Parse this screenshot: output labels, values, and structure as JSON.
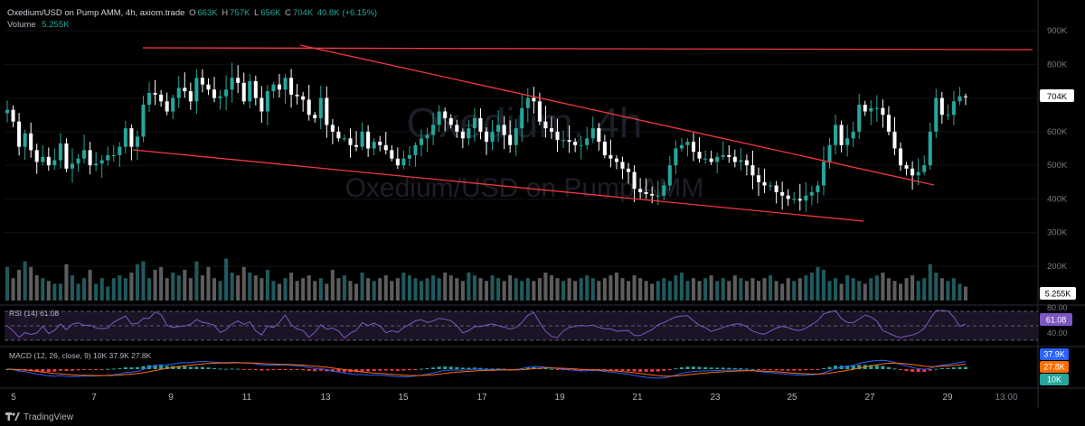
{
  "header": {
    "symbol": "Oxedium/USD on Pump AMM, 4h, axiom.trade",
    "o_label": "O",
    "o_value": "663K",
    "h_label": "H",
    "h_value": "757K",
    "l_label": "L",
    "l_value": "656K",
    "c_label": "C",
    "c_value": "704K",
    "change": "40.8K (+6.15%)",
    "volume_label": "Volume",
    "volume_value": "5.255K"
  },
  "watermark": {
    "big": "Oxedium, 4h",
    "small": "Oxedium/USD on Pump AMM"
  },
  "price_axis": {
    "ticks": [
      "900K",
      "800K",
      "700K",
      "600K",
      "500K",
      "400K",
      "300K",
      "200K"
    ],
    "last_price": "704K",
    "volume_badge": "5.255K"
  },
  "rsi": {
    "label": "RSI (14) 61.08",
    "levels": [
      "80.00",
      "40.00"
    ],
    "value_badge": "61.08"
  },
  "macd": {
    "label": "MACD (12, 26, close, 9) 10K 37.9K 27.8K",
    "badges": [
      "37.9K",
      "27.8K",
      "10K"
    ]
  },
  "time_axis": {
    "ticks": [
      "5",
      "7",
      "9",
      "11",
      "13",
      "15",
      "17",
      "19",
      "21",
      "23",
      "25",
      "27",
      "29",
      "13:00"
    ]
  },
  "footer": {
    "brand": "TradingView"
  },
  "colors": {
    "up": "#26a69a",
    "down": "#ffffff",
    "volume_up": "#1f5a5e",
    "volume_down": "#5d5d5d",
    "trend": "#f23645",
    "rsi": "#7e57c2",
    "macd": "#2962ff",
    "signal": "#ff6d00",
    "background": "#000000"
  },
  "chart_data": {
    "type": "candlestick",
    "title": "Oxedium/USD on Pump AMM, 4h",
    "x_ticks": [
      "5",
      "7",
      "9",
      "11",
      "13",
      "15",
      "17",
      "19",
      "21",
      "23",
      "25",
      "27",
      "29",
      "13:00"
    ],
    "ylim": [
      250,
      920
    ],
    "y_unit": "K",
    "closes": [
      665,
      630,
      555,
      595,
      545,
      510,
      525,
      500,
      515,
      565,
      490,
      505,
      520,
      545,
      500,
      505,
      515,
      530,
      530,
      555,
      610,
      555,
      585,
      680,
      715,
      710,
      690,
      660,
      700,
      730,
      720,
      690,
      760,
      740,
      725,
      700,
      705,
      725,
      760,
      745,
      690,
      750,
      700,
      660,
      720,
      740,
      725,
      760,
      710,
      705,
      695,
      650,
      640,
      700,
      620,
      600,
      580,
      580,
      560,
      555,
      600,
      550,
      570,
      560,
      545,
      520,
      500,
      520,
      530,
      560,
      580,
      590,
      620,
      660,
      640,
      620,
      600,
      580,
      610,
      640,
      600,
      570,
      600,
      620,
      590,
      560,
      610,
      670,
      700,
      690,
      630,
      610,
      600,
      575,
      575,
      570,
      560,
      560,
      580,
      610,
      570,
      530,
      520,
      510,
      490,
      480,
      430,
      420,
      415,
      410,
      410,
      440,
      500,
      550,
      560,
      570,
      540,
      520,
      520,
      510,
      525,
      530,
      525,
      510,
      515,
      500,
      470,
      450,
      440,
      440,
      420,
      410,
      400,
      400,
      395,
      410,
      420,
      440,
      510,
      560,
      620,
      560,
      580,
      600,
      680,
      660,
      670,
      670,
      650,
      600,
      550,
      500,
      490,
      470,
      480,
      500,
      600,
      700,
      650,
      650,
      690,
      705,
      704
    ],
    "volume": [
      60,
      40,
      55,
      70,
      60,
      45,
      40,
      35,
      30,
      30,
      65,
      45,
      30,
      40,
      55,
      30,
      40,
      25,
      40,
      45,
      40,
      50,
      65,
      70,
      40,
      55,
      60,
      40,
      50,
      45,
      55,
      40,
      70,
      45,
      60,
      40,
      35,
      75,
      50,
      45,
      60,
      50,
      45,
      40,
      55,
      35,
      30,
      40,
      50,
      35,
      40,
      45,
      35,
      40,
      30,
      55,
      40,
      45,
      35,
      30,
      50,
      40,
      35,
      40,
      45,
      35,
      40,
      50,
      45,
      40,
      35,
      40,
      45,
      40,
      50,
      45,
      40,
      35,
      50,
      45,
      40,
      35,
      45,
      40,
      35,
      45,
      40,
      35,
      40,
      35,
      40,
      50,
      45,
      40,
      35,
      40,
      35,
      40,
      45,
      40,
      35,
      40,
      45,
      50,
      40,
      35,
      45,
      40,
      35,
      30,
      35,
      40,
      35,
      45,
      50,
      35,
      40,
      35,
      40,
      45,
      35,
      40,
      35,
      45,
      40,
      35,
      40,
      35,
      40,
      45,
      35,
      30,
      40,
      35,
      40,
      45,
      50,
      60,
      55,
      35,
      40,
      30,
      45,
      40,
      35,
      30,
      40,
      45,
      50,
      40,
      35,
      30,
      40,
      45,
      35,
      40,
      65,
      50,
      40,
      35,
      40,
      30,
      25
    ]
  }
}
